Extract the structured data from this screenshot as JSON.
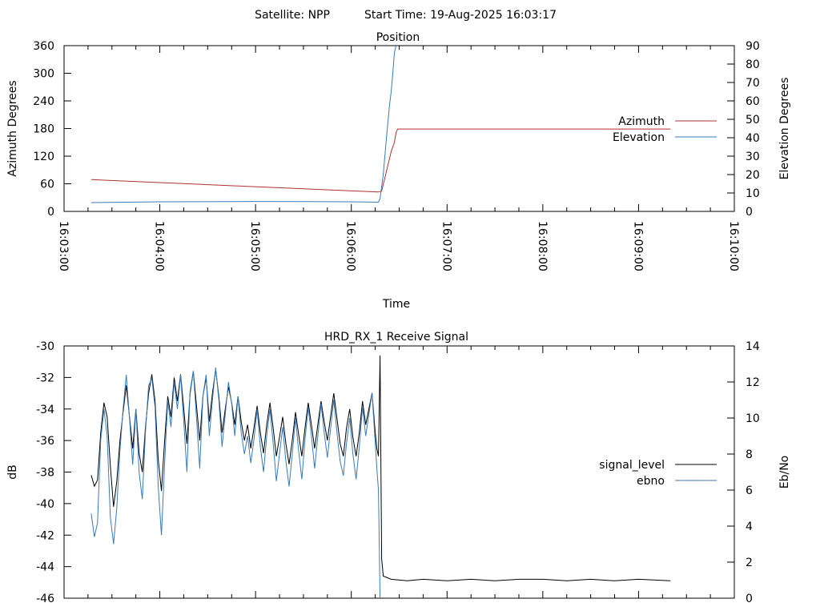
{
  "header": {
    "satellite_label": "Satellite: NPP",
    "start_time_label": "Start Time: 19-Aug-2025 16:03:17"
  },
  "chart_data": [
    {
      "type": "line",
      "title": "Position",
      "xlabel": "Time",
      "ylabel": "Azimuth Degrees",
      "y2label": "Elevation Degrees",
      "xlim": [
        "16:03:00",
        "16:10:00"
      ],
      "xticks": [
        "16:03:00",
        "16:04:00",
        "16:05:00",
        "16:06:00",
        "16:07:00",
        "16:08:00",
        "16:09:00",
        "16:10:00"
      ],
      "ylim": [
        0,
        360
      ],
      "yticks": [
        0,
        60,
        120,
        180,
        240,
        300,
        360
      ],
      "y2lim": [
        0,
        90
      ],
      "y2ticks": [
        0,
        10,
        20,
        30,
        40,
        50,
        60,
        70,
        80,
        90
      ],
      "legend_position": "right",
      "series": [
        {
          "name": "Azimuth",
          "axis": "y",
          "color": "#b03030",
          "points": [
            [
              "16:03:17",
              69
            ],
            [
              "16:06:17",
              42
            ],
            [
              "16:06:19",
              44
            ],
            [
              "16:06:25",
              130
            ],
            [
              "16:06:27",
              150
            ],
            [
              "16:06:28",
              170
            ],
            [
              "16:06:29",
              179
            ],
            [
              "16:09:20",
              179
            ]
          ]
        },
        {
          "name": "Elevation",
          "axis": "y2",
          "color": "#3a7ab8",
          "points": [
            [
              "16:03:17",
              4.8
            ],
            [
              "16:03:40",
              5.0
            ],
            [
              "16:04:00",
              5.2
            ],
            [
              "16:05:00",
              5.4
            ],
            [
              "16:06:00",
              5.2
            ],
            [
              "16:06:17",
              5.0
            ],
            [
              "16:06:18",
              7
            ],
            [
              "16:06:20",
              20
            ],
            [
              "16:06:22",
              40
            ],
            [
              "16:06:24",
              58
            ],
            [
              "16:06:25",
              65
            ],
            [
              "16:06:26",
              75
            ],
            [
              "16:06:27",
              86
            ],
            [
              "16:06:28",
              90
            ]
          ]
        }
      ]
    },
    {
      "type": "line",
      "title": "HRD_RX_1 Receive Signal",
      "ylabel": "dB",
      "y2label": "Eb/No",
      "xlim": [
        "16:03:00",
        "16:10:00"
      ],
      "ylim": [
        -46,
        -30
      ],
      "yticks": [
        -46,
        -44,
        -42,
        -40,
        -38,
        -36,
        -34,
        -32,
        -30
      ],
      "y2lim": [
        0,
        14
      ],
      "y2ticks": [
        0,
        2,
        4,
        6,
        8,
        10,
        12,
        14
      ],
      "legend_position": "right",
      "series": [
        {
          "name": "signal_level",
          "axis": "y",
          "color": "#000000",
          "points": [
            [
              "16:03:17",
              -38.2
            ],
            [
              "16:03:19",
              -38.9
            ],
            [
              "16:03:21",
              -38.5
            ],
            [
              "16:03:23",
              -35.5
            ],
            [
              "16:03:25",
              -33.6
            ],
            [
              "16:03:27",
              -34.5
            ],
            [
              "16:03:29",
              -37.6
            ],
            [
              "16:03:31",
              -40.2
            ],
            [
              "16:03:33",
              -38.6
            ],
            [
              "16:03:35",
              -36.0
            ],
            [
              "16:03:37",
              -34.2
            ],
            [
              "16:03:39",
              -32.5
            ],
            [
              "16:03:41",
              -34.5
            ],
            [
              "16:03:43",
              -36.5
            ],
            [
              "16:03:45",
              -34.0
            ],
            [
              "16:03:47",
              -36.8
            ],
            [
              "16:03:49",
              -38.0
            ],
            [
              "16:03:51",
              -35.2
            ],
            [
              "16:03:53",
              -33.0
            ],
            [
              "16:03:55",
              -31.8
            ],
            [
              "16:03:57",
              -33.5
            ],
            [
              "16:03:59",
              -37.2
            ],
            [
              "16:04:01",
              -39.2
            ],
            [
              "16:04:03",
              -36.0
            ],
            [
              "16:04:05",
              -33.2
            ],
            [
              "16:04:07",
              -34.5
            ],
            [
              "16:04:09",
              -32.0
            ],
            [
              "16:04:11",
              -33.5
            ],
            [
              "16:04:13",
              -31.8
            ],
            [
              "16:04:15",
              -34.0
            ],
            [
              "16:04:17",
              -36.2
            ],
            [
              "16:04:19",
              -33.0
            ],
            [
              "16:04:21",
              -31.6
            ],
            [
              "16:04:23",
              -33.8
            ],
            [
              "16:04:25",
              -36.0
            ],
            [
              "16:04:27",
              -33.2
            ],
            [
              "16:04:29",
              -32.0
            ],
            [
              "16:04:31",
              -34.8
            ],
            [
              "16:04:33",
              -33.0
            ],
            [
              "16:04:35",
              -31.5
            ],
            [
              "16:04:37",
              -33.2
            ],
            [
              "16:04:39",
              -35.5
            ],
            [
              "16:04:41",
              -34.0
            ],
            [
              "16:04:43",
              -32.6
            ],
            [
              "16:04:45",
              -33.6
            ],
            [
              "16:04:47",
              -35.0
            ],
            [
              "16:04:49",
              -33.2
            ],
            [
              "16:04:51",
              -34.8
            ],
            [
              "16:04:53",
              -36.0
            ],
            [
              "16:04:55",
              -35.0
            ],
            [
              "16:04:57",
              -36.5
            ],
            [
              "16:04:59",
              -35.2
            ],
            [
              "16:05:01",
              -33.8
            ],
            [
              "16:05:03",
              -35.5
            ],
            [
              "16:05:05",
              -36.8
            ],
            [
              "16:05:07",
              -35.0
            ],
            [
              "16:05:09",
              -33.6
            ],
            [
              "16:05:11",
              -35.2
            ],
            [
              "16:05:13",
              -37.0
            ],
            [
              "16:05:15",
              -35.8
            ],
            [
              "16:05:17",
              -34.5
            ],
            [
              "16:05:19",
              -36.2
            ],
            [
              "16:05:21",
              -37.5
            ],
            [
              "16:05:23",
              -36.0
            ],
            [
              "16:05:25",
              -34.2
            ],
            [
              "16:05:27",
              -35.6
            ],
            [
              "16:05:29",
              -37.0
            ],
            [
              "16:05:31",
              -35.2
            ],
            [
              "16:05:33",
              -33.6
            ],
            [
              "16:05:35",
              -35.0
            ],
            [
              "16:05:37",
              -36.5
            ],
            [
              "16:05:39",
              -35.0
            ],
            [
              "16:05:41",
              -33.5
            ],
            [
              "16:05:43",
              -34.8
            ],
            [
              "16:05:45",
              -36.0
            ],
            [
              "16:05:47",
              -34.5
            ],
            [
              "16:05:49",
              -33.0
            ],
            [
              "16:05:51",
              -34.6
            ],
            [
              "16:05:53",
              -36.2
            ],
            [
              "16:05:55",
              -37.0
            ],
            [
              "16:05:57",
              -35.2
            ],
            [
              "16:05:59",
              -34.0
            ],
            [
              "16:06:01",
              -35.8
            ],
            [
              "16:06:03",
              -37.0
            ],
            [
              "16:06:05",
              -35.5
            ],
            [
              "16:06:07",
              -33.5
            ],
            [
              "16:06:09",
              -35.0
            ],
            [
              "16:06:11",
              -34.0
            ],
            [
              "16:06:13",
              -33.0
            ],
            [
              "16:06:15",
              -35.5
            ],
            [
              "16:06:16",
              -36.5
            ],
            [
              "16:06:17",
              -37.0
            ],
            [
              "16:06:18",
              -30.6
            ],
            [
              "16:06:19",
              -43.5
            ],
            [
              "16:06:20",
              -44.6
            ],
            [
              "16:06:25",
              -44.8
            ],
            [
              "16:06:35",
              -44.9
            ],
            [
              "16:06:45",
              -44.8
            ],
            [
              "16:07:00",
              -44.9
            ],
            [
              "16:07:15",
              -44.8
            ],
            [
              "16:07:30",
              -44.9
            ],
            [
              "16:07:45",
              -44.8
            ],
            [
              "16:08:00",
              -44.8
            ],
            [
              "16:08:15",
              -44.9
            ],
            [
              "16:08:30",
              -44.8
            ],
            [
              "16:08:45",
              -44.9
            ],
            [
              "16:09:00",
              -44.8
            ],
            [
              "16:09:20",
              -44.9
            ]
          ]
        },
        {
          "name": "ebno",
          "axis": "y2",
          "color": "#3a7ab8",
          "points": [
            [
              "16:03:17",
              4.7
            ],
            [
              "16:03:19",
              3.4
            ],
            [
              "16:03:21",
              4.2
            ],
            [
              "16:03:23",
              8.8
            ],
            [
              "16:03:25",
              10.5
            ],
            [
              "16:03:27",
              9.0
            ],
            [
              "16:03:29",
              4.5
            ],
            [
              "16:03:31",
              3.0
            ],
            [
              "16:03:33",
              5.0
            ],
            [
              "16:03:35",
              8.2
            ],
            [
              "16:03:37",
              10.5
            ],
            [
              "16:03:39",
              12.4
            ],
            [
              "16:03:41",
              10.0
            ],
            [
              "16:03:43",
              7.4
            ],
            [
              "16:03:45",
              10.5
            ],
            [
              "16:03:47",
              7.0
            ],
            [
              "16:03:49",
              5.5
            ],
            [
              "16:03:51",
              9.2
            ],
            [
              "16:03:53",
              11.8
            ],
            [
              "16:03:55",
              12.2
            ],
            [
              "16:03:57",
              10.6
            ],
            [
              "16:03:59",
              6.2
            ],
            [
              "16:04:01",
              3.5
            ],
            [
              "16:04:03",
              7.5
            ],
            [
              "16:04:05",
              11.0
            ],
            [
              "16:04:07",
              9.5
            ],
            [
              "16:04:09",
              12.0
            ],
            [
              "16:04:11",
              10.5
            ],
            [
              "16:04:13",
              12.4
            ],
            [
              "16:04:15",
              9.8
            ],
            [
              "16:04:17",
              7.0
            ],
            [
              "16:04:19",
              11.5
            ],
            [
              "16:04:21",
              12.6
            ],
            [
              "16:04:23",
              10.0
            ],
            [
              "16:04:25",
              7.2
            ],
            [
              "16:04:27",
              11.2
            ],
            [
              "16:04:29",
              12.4
            ],
            [
              "16:04:31",
              9.0
            ],
            [
              "16:04:33",
              11.0
            ],
            [
              "16:04:35",
              12.8
            ],
            [
              "16:04:37",
              11.0
            ],
            [
              "16:04:39",
              8.4
            ],
            [
              "16:04:41",
              10.2
            ],
            [
              "16:04:43",
              12.0
            ],
            [
              "16:04:45",
              10.8
            ],
            [
              "16:04:47",
              9.0
            ],
            [
              "16:04:49",
              11.2
            ],
            [
              "16:04:51",
              9.2
            ],
            [
              "16:04:53",
              8.0
            ],
            [
              "16:04:55",
              9.0
            ],
            [
              "16:04:57",
              7.5
            ],
            [
              "16:04:59",
              8.8
            ],
            [
              "16:05:01",
              10.5
            ],
            [
              "16:05:03",
              8.4
            ],
            [
              "16:05:05",
              7.0
            ],
            [
              "16:05:07",
              9.0
            ],
            [
              "16:05:09",
              10.5
            ],
            [
              "16:05:11",
              8.6
            ],
            [
              "16:05:13",
              6.5
            ],
            [
              "16:05:15",
              8.0
            ],
            [
              "16:05:17",
              9.5
            ],
            [
              "16:05:19",
              7.6
            ],
            [
              "16:05:21",
              6.2
            ],
            [
              "16:05:23",
              8.0
            ],
            [
              "16:05:25",
              10.0
            ],
            [
              "16:05:27",
              8.2
            ],
            [
              "16:05:29",
              6.6
            ],
            [
              "16:05:31",
              8.8
            ],
            [
              "16:05:33",
              10.6
            ],
            [
              "16:05:35",
              9.0
            ],
            [
              "16:05:37",
              7.2
            ],
            [
              "16:05:39",
              9.0
            ],
            [
              "16:05:41",
              10.8
            ],
            [
              "16:05:43",
              9.2
            ],
            [
              "16:05:45",
              7.8
            ],
            [
              "16:05:47",
              9.4
            ],
            [
              "16:05:49",
              11.0
            ],
            [
              "16:05:51",
              9.2
            ],
            [
              "16:05:53",
              7.6
            ],
            [
              "16:05:55",
              6.8
            ],
            [
              "16:05:57",
              8.6
            ],
            [
              "16:05:59",
              10.0
            ],
            [
              "16:06:01",
              8.0
            ],
            [
              "16:06:03",
              6.6
            ],
            [
              "16:06:05",
              8.4
            ],
            [
              "16:06:07",
              10.6
            ],
            [
              "16:06:09",
              9.0
            ],
            [
              "16:06:11",
              10.2
            ],
            [
              "16:06:13",
              11.4
            ],
            [
              "16:06:15",
              8.6
            ],
            [
              "16:06:16",
              7.2
            ],
            [
              "16:06:17",
              6.0
            ],
            [
              "16:06:18",
              0.0
            ]
          ]
        }
      ]
    }
  ]
}
